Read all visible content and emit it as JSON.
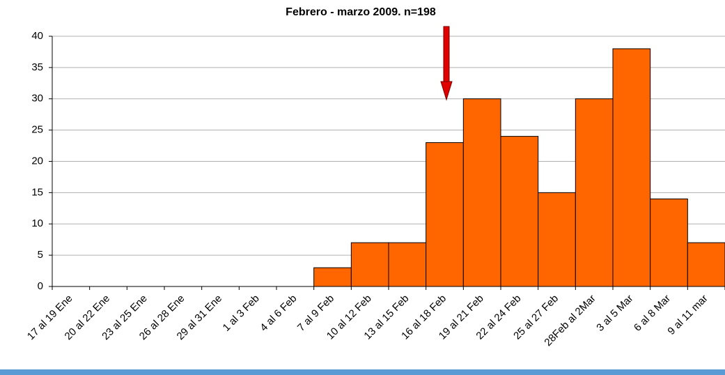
{
  "chart_data": {
    "type": "bar",
    "title": "Febrero - marzo 2009. n=198",
    "categories": [
      "17 al 19 Ene",
      "20 al 22 Ene",
      "23 al 25 Ene",
      "26 al 28 Ene",
      "29 al 31 Ene",
      "1 al 3 Feb",
      "4 al 6 Feb",
      "7 al 9 Feb",
      "10 al 12 Feb",
      "13 al 15 Feb",
      "16 al 18 Feb",
      "19 al 21 Feb",
      "22 al 24 Feb",
      "25 al 27 Feb",
      "28Feb al 2Mar",
      "3 al 5 Mar",
      "6 al 8 Mar",
      "9 al 11 mar"
    ],
    "values": [
      0,
      0,
      0,
      0,
      0,
      0,
      0,
      3,
      7,
      7,
      23,
      30,
      24,
      15,
      30,
      38,
      14,
      7
    ],
    "color": "#ff6600",
    "ylim": [
      0,
      40
    ],
    "yticks": [
      0,
      5,
      10,
      15,
      20,
      25,
      30,
      35,
      40
    ],
    "grid": true
  }
}
